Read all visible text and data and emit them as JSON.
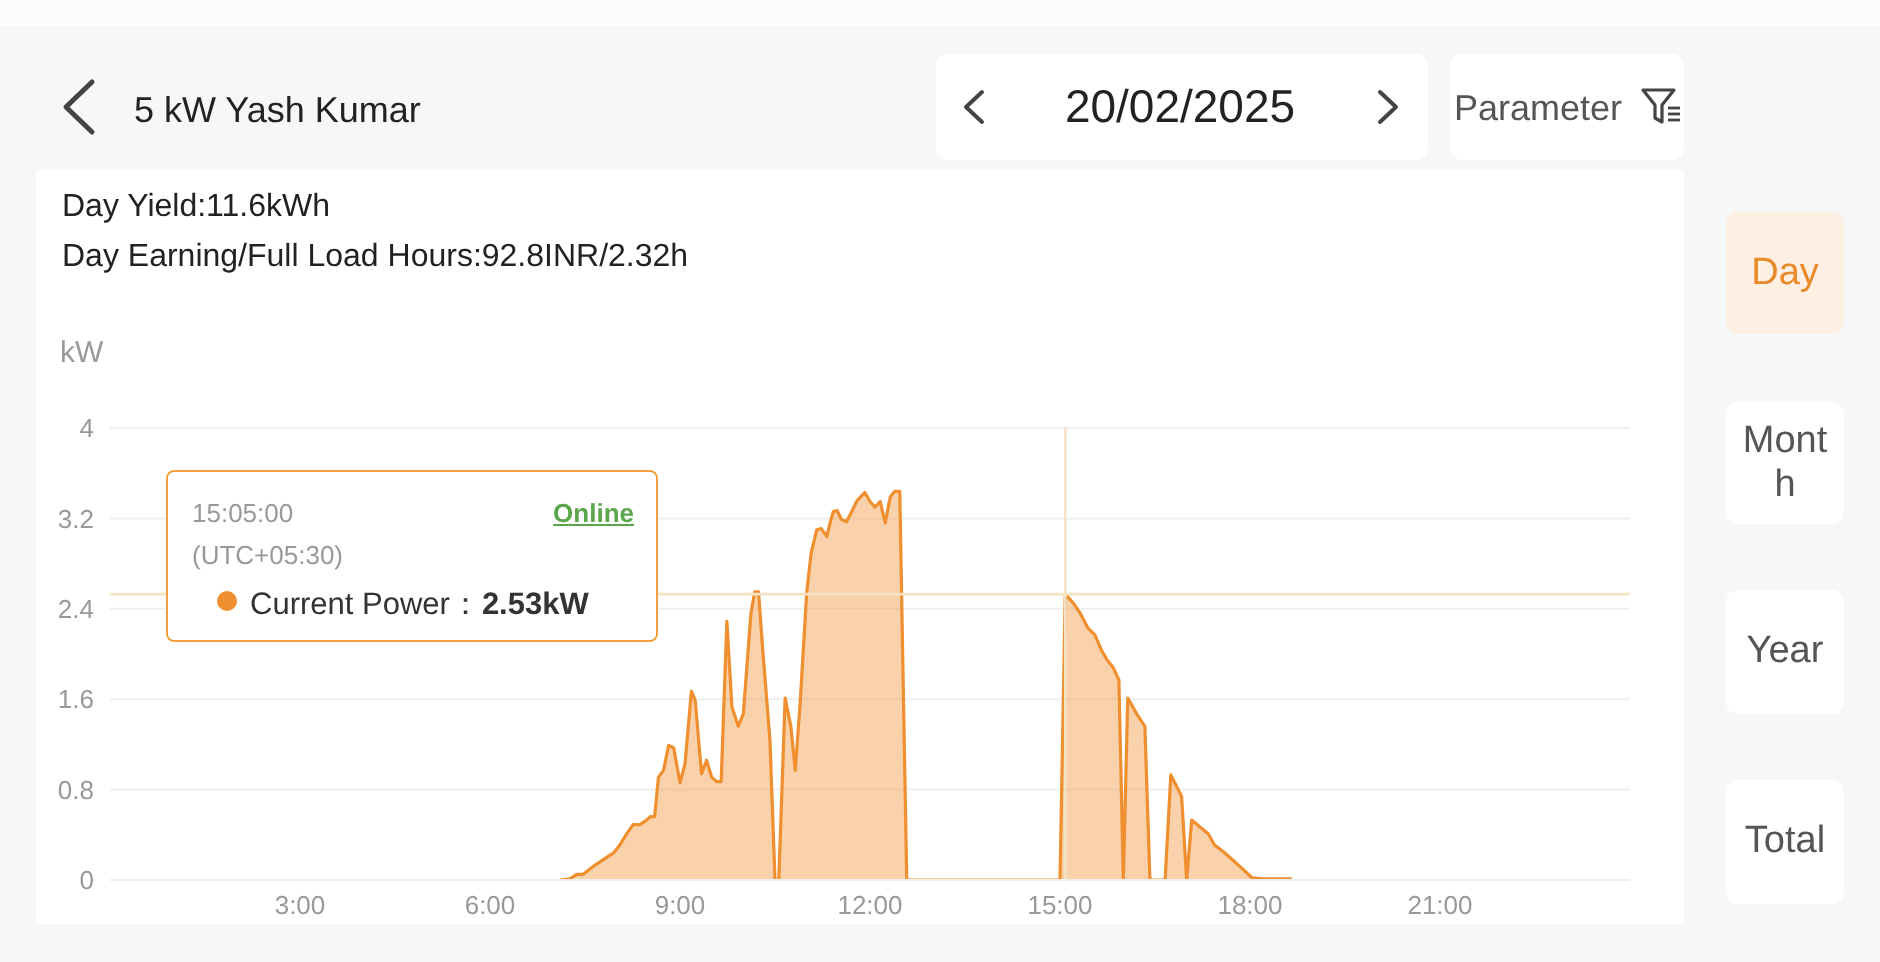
{
  "chart_data": {
    "type": "area",
    "title": "5 kW Yash Kumar",
    "subtitle": "20/02/2025",
    "ylabel": "kW",
    "annotations": [
      "Parameter",
      "Day Yield:11.6kWh",
      "Day Earning/Full Load Hours:92.8INR/2.32h",
      "Day",
      "Month",
      "Year",
      "Total",
      "15:05:00",
      "(UTC+05:30)",
      "Online",
      "Current Power：2.53kW"
    ],
    "x": [
      7.1,
      7.26,
      7.37,
      7.47,
      7.63,
      7.79,
      7.95,
      8.05,
      8.16,
      8.26,
      8.37,
      8.47,
      8.53,
      8.6,
      8.66,
      8.74,
      8.82,
      8.9,
      9.0,
      9.08,
      9.18,
      9.24,
      9.34,
      9.42,
      9.5,
      9.58,
      9.65,
      9.74,
      9.82,
      9.92,
      10.0,
      10.12,
      10.18,
      10.24,
      10.31,
      10.42,
      10.5,
      10.56,
      10.66,
      10.75,
      10.82,
      10.9,
      11.0,
      11.07,
      11.16,
      11.23,
      11.32,
      11.37,
      11.42,
      11.48,
      11.55,
      11.63,
      11.72,
      11.8,
      11.92,
      12.0,
      12.08,
      12.16,
      12.24,
      12.32,
      12.39,
      12.47,
      12.58,
      15.0,
      15.0833,
      15.21,
      15.32,
      15.44,
      15.55,
      15.65,
      15.74,
      15.84,
      15.93,
      16.0,
      16.07,
      16.21,
      16.34,
      16.42,
      16.66,
      16.75,
      16.92,
      17.0,
      17.08,
      17.21,
      17.34,
      17.44,
      17.58,
      17.74,
      17.9,
      18.03,
      18.21,
      18.66
    ],
    "values": [
      0,
      0.01,
      0.05,
      0.05,
      0.12,
      0.18,
      0.24,
      0.31,
      0.41,
      0.49,
      0.49,
      0.53,
      0.56,
      0.56,
      0.91,
      0.97,
      1.19,
      1.17,
      0.86,
      1.03,
      1.67,
      1.59,
      0.94,
      1.06,
      0.91,
      0.87,
      0.87,
      2.29,
      1.53,
      1.36,
      1.47,
      2.36,
      2.55,
      2.55,
      2.01,
      1.24,
      0,
      0,
      1.61,
      1.36,
      0.97,
      1.59,
      2.54,
      2.89,
      3.1,
      3.11,
      3.04,
      3.16,
      3.26,
      3.27,
      3.19,
      3.17,
      3.27,
      3.36,
      3.43,
      3.35,
      3.3,
      3.35,
      3.16,
      3.39,
      3.44,
      3.44,
      0,
      0,
      2.53,
      2.45,
      2.36,
      2.23,
      2.17,
      2.04,
      1.95,
      1.88,
      1.77,
      0,
      1.61,
      1.47,
      1.36,
      0,
      0,
      0.93,
      0.74,
      0,
      0.53,
      0.47,
      0.41,
      0.31,
      0.25,
      0.17,
      0.09,
      0.02,
      0.01,
      0.01
    ],
    "color": "#ef8f2f",
    "xlim": [
      0,
      24
    ],
    "xticks": [
      {
        "value": 3,
        "label": "3:00"
      },
      {
        "value": 6,
        "label": "6:00"
      },
      {
        "value": 9,
        "label": "9:00"
      },
      {
        "value": 12,
        "label": "12:00"
      },
      {
        "value": 15,
        "label": "15:00"
      },
      {
        "value": 18,
        "label": "18:00"
      },
      {
        "value": 21,
        "label": "21:00"
      }
    ],
    "ylim": [
      0,
      4
    ],
    "yticks": [
      0,
      0.8,
      1.6,
      2.4,
      3.2,
      4
    ],
    "grid": "y",
    "ref_lines": [
      {
        "axis": "x",
        "value": 15.0833,
        "color": "#f5e1c4"
      },
      {
        "axis": "y",
        "value": 2.53,
        "color": "#f5e1c4"
      }
    ]
  }
}
